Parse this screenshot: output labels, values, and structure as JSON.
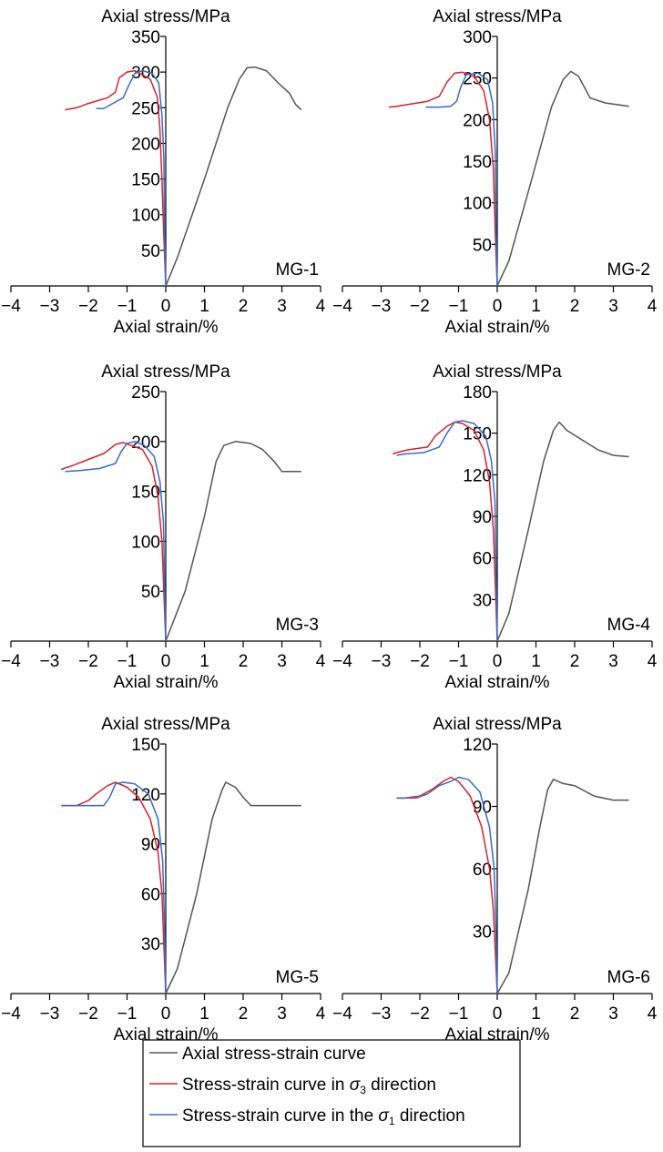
{
  "legend": {
    "items": [
      {
        "text": "Axial stress-strain curve",
        "color": "#555555",
        "series": "axial"
      },
      {
        "text": "Stress-strain curve in σ3 direction",
        "color": "#d8202c",
        "series": "sigma3"
      },
      {
        "text": "Stress-strain curve in the σ1 direction",
        "color": "#3a6bc4",
        "series": "sigma1"
      }
    ]
  },
  "colors": {
    "axial": "#555555",
    "sigma3": "#d8202c",
    "sigma1": "#3a6bc4"
  },
  "chart_data": [
    {
      "type": "line",
      "id": "MG-1",
      "ylabel": "Axial stress/MPa",
      "xlabel": "Axial strain/%",
      "xlim": [
        -4,
        4
      ],
      "xticks": [
        -4,
        -3,
        -2,
        -1,
        0,
        1,
        2,
        3,
        4
      ],
      "ylim": [
        0,
        350
      ],
      "yticks": [
        50,
        100,
        150,
        200,
        250,
        300,
        350
      ],
      "series": [
        {
          "key": "axial",
          "points": [
            [
              0,
              0
            ],
            [
              0.3,
              40
            ],
            [
              1.0,
              150
            ],
            [
              1.6,
              250
            ],
            [
              1.9,
              290
            ],
            [
              2.1,
              306
            ],
            [
              2.3,
              307
            ],
            [
              2.6,
              302
            ],
            [
              2.9,
              285
            ],
            [
              3.2,
              270
            ],
            [
              3.35,
              255
            ],
            [
              3.5,
              247
            ]
          ]
        },
        {
          "key": "sigma3",
          "points": [
            [
              0,
              0
            ],
            [
              -0.05,
              70
            ],
            [
              -0.1,
              150
            ],
            [
              -0.15,
              220
            ],
            [
              -0.22,
              265
            ],
            [
              -0.4,
              290
            ],
            [
              -0.8,
              302
            ],
            [
              -1.0,
              300
            ],
            [
              -1.2,
              292
            ],
            [
              -1.3,
              272
            ],
            [
              -1.5,
              264
            ],
            [
              -2.0,
              256
            ],
            [
              -2.3,
              250
            ],
            [
              -2.6,
              247
            ]
          ]
        },
        {
          "key": "sigma1",
          "points": [
            [
              0,
              0
            ],
            [
              -0.03,
              80
            ],
            [
              -0.05,
              180
            ],
            [
              -0.1,
              240
            ],
            [
              -0.18,
              285
            ],
            [
              -0.35,
              298
            ],
            [
              -0.6,
              302
            ],
            [
              -0.8,
              298
            ],
            [
              -0.95,
              282
            ],
            [
              -1.1,
              264
            ],
            [
              -1.4,
              255
            ],
            [
              -1.6,
              249
            ],
            [
              -1.8,
              249
            ]
          ]
        }
      ]
    },
    {
      "type": "line",
      "id": "MG-2",
      "ylabel": "Axial stress/MPa",
      "xlabel": "Axial strain/%",
      "xlim": [
        -4,
        4
      ],
      "xticks": [
        -4,
        -3,
        -2,
        -1,
        0,
        1,
        2,
        3,
        4
      ],
      "ylim": [
        0,
        300
      ],
      "yticks": [
        50,
        100,
        150,
        200,
        250,
        300
      ],
      "series": [
        {
          "key": "axial",
          "points": [
            [
              0,
              0
            ],
            [
              0.3,
              30
            ],
            [
              0.9,
              130
            ],
            [
              1.4,
              215
            ],
            [
              1.7,
              248
            ],
            [
              1.9,
              258
            ],
            [
              2.1,
              252
            ],
            [
              2.4,
              226
            ],
            [
              2.8,
              220
            ],
            [
              3.1,
              218
            ],
            [
              3.4,
              216
            ]
          ]
        },
        {
          "key": "sigma3",
          "points": [
            [
              0,
              0
            ],
            [
              -0.05,
              60
            ],
            [
              -0.1,
              140
            ],
            [
              -0.2,
              200
            ],
            [
              -0.35,
              235
            ],
            [
              -0.6,
              252
            ],
            [
              -0.9,
              257
            ],
            [
              -1.1,
              256
            ],
            [
              -1.3,
              245
            ],
            [
              -1.5,
              228
            ],
            [
              -1.8,
              222
            ],
            [
              -2.2,
              219
            ],
            [
              -2.6,
              216
            ],
            [
              -2.8,
              215
            ]
          ]
        },
        {
          "key": "sigma1",
          "points": [
            [
              0,
              0
            ],
            [
              -0.03,
              70
            ],
            [
              -0.05,
              160
            ],
            [
              -0.12,
              220
            ],
            [
              -0.25,
              248
            ],
            [
              -0.5,
              256
            ],
            [
              -0.8,
              254
            ],
            [
              -0.95,
              238
            ],
            [
              -1.05,
              222
            ],
            [
              -1.2,
              216
            ],
            [
              -1.5,
              215
            ],
            [
              -1.85,
              215
            ]
          ]
        }
      ]
    },
    {
      "type": "line",
      "id": "MG-3",
      "ylabel": "Axial stress/MPa",
      "xlabel": "Axial strain/%",
      "xlim": [
        -4,
        4
      ],
      "xticks": [
        -4,
        -3,
        -2,
        -1,
        0,
        1,
        2,
        3,
        4
      ],
      "ylim": [
        0,
        250
      ],
      "yticks": [
        50,
        100,
        150,
        200,
        250
      ],
      "series": [
        {
          "key": "axial",
          "points": [
            [
              0,
              0
            ],
            [
              0.5,
              50
            ],
            [
              1.0,
              125
            ],
            [
              1.3,
              180
            ],
            [
              1.5,
              196
            ],
            [
              1.8,
              200
            ],
            [
              2.2,
              198
            ],
            [
              2.5,
              192
            ],
            [
              2.8,
              180
            ],
            [
              3.0,
              170
            ],
            [
              3.5,
              170
            ]
          ]
        },
        {
          "key": "sigma3",
          "points": [
            [
              0,
              0
            ],
            [
              -0.05,
              50
            ],
            [
              -0.1,
              100
            ],
            [
              -0.2,
              145
            ],
            [
              -0.35,
              175
            ],
            [
              -0.6,
              192
            ],
            [
              -0.9,
              196
            ],
            [
              -1.1,
              199
            ],
            [
              -1.3,
              197
            ],
            [
              -1.6,
              188
            ],
            [
              -2.0,
              182
            ],
            [
              -2.4,
              176
            ],
            [
              -2.7,
              172
            ]
          ]
        },
        {
          "key": "sigma1",
          "points": [
            [
              0,
              0
            ],
            [
              -0.03,
              60
            ],
            [
              -0.06,
              120
            ],
            [
              -0.15,
              160
            ],
            [
              -0.3,
              185
            ],
            [
              -0.55,
              196
            ],
            [
              -0.8,
              200
            ],
            [
              -1.0,
              198
            ],
            [
              -1.15,
              190
            ],
            [
              -1.3,
              178
            ],
            [
              -1.7,
              173
            ],
            [
              -2.2,
              171
            ],
            [
              -2.6,
              170
            ]
          ]
        }
      ]
    },
    {
      "type": "line",
      "id": "MG-4",
      "ylabel": "Axial stress/MPa",
      "xlabel": "Axial strain/%",
      "xlim": [
        -4,
        4
      ],
      "xticks": [
        -4,
        -3,
        -2,
        -1,
        0,
        1,
        2,
        3,
        4
      ],
      "ylim": [
        0,
        180
      ],
      "yticks": [
        30,
        60,
        90,
        120,
        150,
        180
      ],
      "series": [
        {
          "key": "axial",
          "points": [
            [
              0,
              0
            ],
            [
              0.3,
              20
            ],
            [
              0.8,
              80
            ],
            [
              1.2,
              130
            ],
            [
              1.45,
              152
            ],
            [
              1.6,
              158
            ],
            [
              1.8,
              152
            ],
            [
              2.2,
              145
            ],
            [
              2.6,
              138
            ],
            [
              3.0,
              134
            ],
            [
              3.4,
              133
            ]
          ]
        },
        {
          "key": "sigma3",
          "points": [
            [
              0,
              0
            ],
            [
              -0.05,
              40
            ],
            [
              -0.1,
              80
            ],
            [
              -0.2,
              115
            ],
            [
              -0.35,
              138
            ],
            [
              -0.6,
              152
            ],
            [
              -0.9,
              157
            ],
            [
              -1.1,
              158
            ],
            [
              -1.3,
              155
            ],
            [
              -1.6,
              148
            ],
            [
              -1.8,
              140
            ],
            [
              -2.3,
              138
            ],
            [
              -2.6,
              136
            ],
            [
              -2.7,
              135
            ]
          ]
        },
        {
          "key": "sigma1",
          "points": [
            [
              0,
              0
            ],
            [
              -0.03,
              50
            ],
            [
              -0.06,
              100
            ],
            [
              -0.15,
              130
            ],
            [
              -0.3,
              148
            ],
            [
              -0.6,
              157
            ],
            [
              -0.9,
              159
            ],
            [
              -1.1,
              158
            ],
            [
              -1.3,
              150
            ],
            [
              -1.5,
              140
            ],
            [
              -1.9,
              136
            ],
            [
              -2.4,
              135
            ],
            [
              -2.6,
              134
            ]
          ]
        }
      ]
    },
    {
      "type": "line",
      "id": "MG-5",
      "ylabel": "Axial stress/MPa",
      "xlabel": "Axial strain/%",
      "xlim": [
        -4,
        4
      ],
      "xticks": [
        -4,
        -3,
        -2,
        -1,
        0,
        1,
        2,
        3,
        4
      ],
      "ylim": [
        0,
        150
      ],
      "yticks": [
        30,
        60,
        90,
        120,
        150
      ],
      "series": [
        {
          "key": "axial",
          "points": [
            [
              0,
              0
            ],
            [
              0.3,
              15
            ],
            [
              0.8,
              60
            ],
            [
              1.2,
              105
            ],
            [
              1.45,
              122
            ],
            [
              1.55,
              127
            ],
            [
              1.8,
              124
            ],
            [
              2.0,
              118
            ],
            [
              2.2,
              113
            ],
            [
              2.8,
              113
            ],
            [
              3.5,
              113
            ]
          ]
        },
        {
          "key": "sigma3",
          "points": [
            [
              0,
              0
            ],
            [
              -0.05,
              30
            ],
            [
              -0.1,
              60
            ],
            [
              -0.2,
              85
            ],
            [
              -0.4,
              105
            ],
            [
              -0.7,
              118
            ],
            [
              -1.0,
              124
            ],
            [
              -1.3,
              127
            ],
            [
              -1.5,
              125
            ],
            [
              -1.8,
              120
            ],
            [
              -2.0,
              116
            ],
            [
              -2.3,
              113
            ],
            [
              -2.7,
              113
            ]
          ]
        },
        {
          "key": "sigma1",
          "points": [
            [
              0,
              0
            ],
            [
              -0.03,
              40
            ],
            [
              -0.08,
              80
            ],
            [
              -0.2,
              105
            ],
            [
              -0.45,
              120
            ],
            [
              -0.8,
              126
            ],
            [
              -1.1,
              127
            ],
            [
              -1.3,
              126
            ],
            [
              -1.45,
              118
            ],
            [
              -1.6,
              113
            ],
            [
              -2.0,
              113
            ],
            [
              -2.6,
              113
            ]
          ]
        }
      ]
    },
    {
      "type": "line",
      "id": "MG-6",
      "ylabel": "Axial stress/MPa",
      "xlabel": "Axial strain/%",
      "xlim": [
        -4,
        4
      ],
      "xticks": [
        -4,
        -3,
        -2,
        -1,
        0,
        1,
        2,
        3,
        4
      ],
      "ylim": [
        0,
        120
      ],
      "yticks": [
        30,
        60,
        90,
        120
      ],
      "series": [
        {
          "key": "axial",
          "points": [
            [
              0,
              0
            ],
            [
              0.3,
              10
            ],
            [
              0.8,
              50
            ],
            [
              1.1,
              80
            ],
            [
              1.3,
              98
            ],
            [
              1.45,
              103
            ],
            [
              1.7,
              101
            ],
            [
              2.0,
              100
            ],
            [
              2.5,
              95
            ],
            [
              3.0,
              93
            ],
            [
              3.4,
              93
            ]
          ]
        },
        {
          "key": "sigma3",
          "points": [
            [
              0,
              0
            ],
            [
              -0.05,
              20
            ],
            [
              -0.1,
              40
            ],
            [
              -0.2,
              60
            ],
            [
              -0.4,
              80
            ],
            [
              -0.7,
              95
            ],
            [
              -1.0,
              102
            ],
            [
              -1.2,
              104
            ],
            [
              -1.4,
              102
            ],
            [
              -1.7,
              98
            ],
            [
              -2.0,
              95
            ],
            [
              -2.4,
              94
            ],
            [
              -2.6,
              94
            ]
          ]
        },
        {
          "key": "sigma1",
          "points": [
            [
              0,
              0
            ],
            [
              -0.03,
              30
            ],
            [
              -0.08,
              60
            ],
            [
              -0.2,
              80
            ],
            [
              -0.45,
              97
            ],
            [
              -0.75,
              103
            ],
            [
              -1.0,
              104
            ],
            [
              -1.2,
              102
            ],
            [
              -1.5,
              100
            ],
            [
              -1.8,
              96
            ],
            [
              -2.1,
              94
            ],
            [
              -2.6,
              94
            ]
          ]
        }
      ]
    }
  ]
}
